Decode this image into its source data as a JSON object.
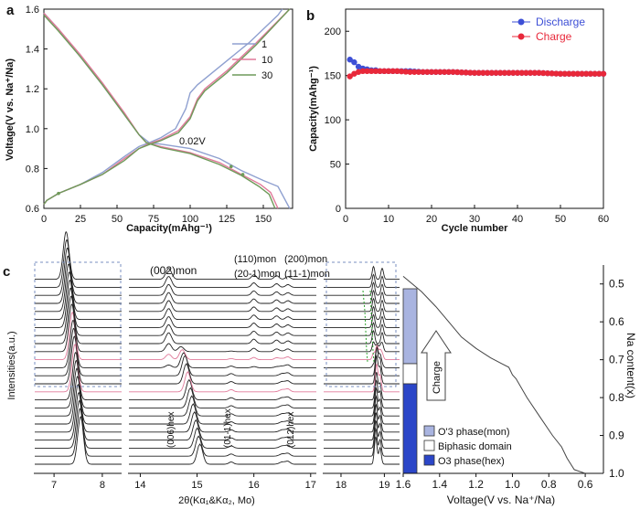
{
  "chart_data": [
    {
      "panel": "a",
      "type": "line",
      "xlabel": "Capacity(mAhg⁻¹)",
      "ylabel": "Voltage(V vs. Na⁺/Na)",
      "xlim": [
        0,
        170
      ],
      "ylim": [
        0.6,
        1.6
      ],
      "xticks": [
        "0",
        "25",
        "50",
        "75",
        "100",
        "125",
        "150"
      ],
      "yticks": [
        "0.6",
        "0.8",
        "1.0",
        "1.2",
        "1.4",
        "1.6"
      ],
      "annotation": "0.02V",
      "legend": [
        "1",
        "10",
        "30"
      ],
      "colors": [
        "#8fa0d0",
        "#e07a9a",
        "#6f9a5a"
      ],
      "series": [
        {
          "name": "1",
          "charge": [
            [
              0,
              0.62
            ],
            [
              2,
              0.64
            ],
            [
              10,
              0.675
            ],
            [
              25,
              0.72
            ],
            [
              40,
              0.78
            ],
            [
              55,
              0.86
            ],
            [
              65,
              0.91
            ],
            [
              72,
              0.93
            ],
            [
              80,
              0.955
            ],
            [
              90,
              1.0
            ],
            [
              97,
              1.1
            ],
            [
              100,
              1.18
            ],
            [
              105,
              1.22
            ],
            [
              120,
              1.31
            ],
            [
              140,
              1.43
            ],
            [
              160,
              1.57
            ],
            [
              163,
              1.6
            ]
          ],
          "discharge": [
            [
              0,
              1.58
            ],
            [
              10,
              1.5
            ],
            [
              25,
              1.36
            ],
            [
              40,
              1.22
            ],
            [
              55,
              1.07
            ],
            [
              65,
              0.97
            ],
            [
              72,
              0.93
            ],
            [
              82,
              0.92
            ],
            [
              100,
              0.9
            ],
            [
              120,
              0.85
            ],
            [
              135,
              0.79
            ],
            [
              150,
              0.74
            ],
            [
              160,
              0.71
            ],
            [
              168,
              0.6
            ]
          ]
        },
        {
          "name": "10",
          "charge": [
            [
              0,
              0.62
            ],
            [
              2,
              0.64
            ],
            [
              10,
              0.675
            ],
            [
              25,
              0.72
            ],
            [
              40,
              0.77
            ],
            [
              55,
              0.85
            ],
            [
              65,
              0.9
            ],
            [
              72,
              0.925
            ],
            [
              80,
              0.945
            ],
            [
              92,
              0.99
            ],
            [
              100,
              1.06
            ],
            [
              105,
              1.15
            ],
            [
              110,
              1.2
            ],
            [
              125,
              1.29
            ],
            [
              145,
              1.43
            ],
            [
              168,
              1.6
            ]
          ],
          "discharge": [
            [
              0,
              1.58
            ],
            [
              10,
              1.5
            ],
            [
              25,
              1.37
            ],
            [
              40,
              1.23
            ],
            [
              55,
              1.08
            ],
            [
              65,
              0.97
            ],
            [
              70,
              0.93
            ],
            [
              80,
              0.91
            ],
            [
              100,
              0.88
            ],
            [
              120,
              0.83
            ],
            [
              135,
              0.77
            ],
            [
              148,
              0.72
            ],
            [
              155,
              0.68
            ],
            [
              160,
              0.6
            ]
          ]
        },
        {
          "name": "30",
          "charge": [
            [
              0,
              0.62
            ],
            [
              2,
              0.64
            ],
            [
              10,
              0.675
            ],
            [
              25,
              0.72
            ],
            [
              40,
              0.77
            ],
            [
              55,
              0.84
            ],
            [
              65,
              0.9
            ],
            [
              72,
              0.92
            ],
            [
              80,
              0.94
            ],
            [
              92,
              0.98
            ],
            [
              100,
              1.05
            ],
            [
              105,
              1.14
            ],
            [
              110,
              1.19
            ],
            [
              125,
              1.28
            ],
            [
              145,
              1.42
            ],
            [
              168,
              1.6
            ]
          ],
          "discharge": [
            [
              0,
              1.57
            ],
            [
              10,
              1.49
            ],
            [
              25,
              1.36
            ],
            [
              40,
              1.22
            ],
            [
              55,
              1.07
            ],
            [
              65,
              0.97
            ],
            [
              70,
              0.93
            ],
            [
              80,
              0.905
            ],
            [
              100,
              0.875
            ],
            [
              120,
              0.82
            ],
            [
              135,
              0.765
            ],
            [
              147,
              0.71
            ],
            [
              154,
              0.67
            ],
            [
              158,
              0.6
            ]
          ]
        }
      ]
    },
    {
      "panel": "b",
      "type": "scatter",
      "xlabel": "Cycle number",
      "ylabel": "Capacity(mAhg⁻¹)",
      "xlim": [
        0,
        60
      ],
      "ylim": [
        0,
        225
      ],
      "xticks": [
        "0",
        "10",
        "20",
        "30",
        "40",
        "50",
        "60"
      ],
      "yticks": [
        "0",
        "50",
        "100",
        "150",
        "200"
      ],
      "legend": [
        "Discharge",
        "Charge"
      ],
      "colors": [
        "#3d4fd6",
        "#e8283a"
      ],
      "series": [
        {
          "name": "Discharge",
          "x": [
            1,
            2,
            3,
            4,
            5,
            6,
            7,
            8,
            9,
            10,
            12,
            15,
            18,
            20,
            25,
            30,
            35,
            40,
            45,
            50,
            55,
            60
          ],
          "y": [
            168,
            165,
            160,
            158,
            157,
            156,
            156,
            155,
            155,
            155,
            155,
            155,
            154,
            154,
            154,
            153,
            153,
            153,
            153,
            152,
            152,
            152
          ]
        },
        {
          "name": "Charge",
          "x": [
            1,
            2,
            3,
            4,
            5,
            6,
            7,
            8,
            9,
            10,
            12,
            15,
            18,
            20,
            25,
            30,
            35,
            40,
            45,
            50,
            55,
            60
          ],
          "y": [
            149,
            152,
            154,
            155,
            155,
            155,
            155,
            155,
            155,
            155,
            155,
            154,
            154,
            154,
            154,
            153,
            153,
            153,
            153,
            152,
            152,
            152
          ]
        }
      ]
    },
    {
      "panel": "c",
      "type": "line",
      "xlabel": "2θ(Kα₁&Kα₂, Mo)",
      "ylabel": "Intensities(a.u.)",
      "xticks_1": [
        "7",
        "8"
      ],
      "xticks_2": [
        "14",
        "15",
        "16",
        "17"
      ],
      "xticks_3": [
        "18",
        "19"
      ],
      "num_patterns": 24,
      "pink_pattern_indices": [
        9,
        13
      ],
      "peak_labels": {
        "p002mon": "(002)mon",
        "p110mon": "(110)mon",
        "p201mon": "(20-1)mon",
        "p200mon": "(200)mon",
        "p111mon": "(11-1)mon",
        "p006hex": "(006)hex",
        "p011hex": "(01-1)hex",
        "p012hex": "(012)hex"
      },
      "phase_legend": [
        "O'3 phase(mon)",
        "Biphasic domain",
        "O3 phase(hex)"
      ],
      "phase_colors": [
        "#a9b4e0",
        "#ffffff",
        "#2b46c8"
      ],
      "arrow_label": "Charge",
      "voltage_xlabel": "Voltage(V vs. Na⁺/Na)",
      "voltage_xticks": [
        "1.6",
        "1.4",
        "1.2",
        "1.0",
        "0.8",
        "0.6"
      ],
      "voltage_xlim": [
        1.6,
        0.5
      ],
      "na_ylabel": "Na content(x)",
      "na_yticks": [
        "0.5",
        "0.6",
        "0.7",
        "0.8",
        "0.9",
        "1.0"
      ],
      "na_ylim": [
        0.45,
        1.0
      ],
      "voltage_curve": [
        [
          1.6,
          0.48
        ],
        [
          1.5,
          0.52
        ],
        [
          1.42,
          0.56
        ],
        [
          1.35,
          0.6
        ],
        [
          1.28,
          0.64
        ],
        [
          1.2,
          0.67
        ],
        [
          1.12,
          0.695
        ],
        [
          1.06,
          0.71
        ],
        [
          1.02,
          0.72
        ],
        [
          1.0,
          0.74
        ],
        [
          0.98,
          0.75
        ],
        [
          0.92,
          0.8
        ],
        [
          0.85,
          0.85
        ],
        [
          0.78,
          0.9
        ],
        [
          0.73,
          0.93
        ],
        [
          0.7,
          0.96
        ],
        [
          0.66,
          0.99
        ],
        [
          0.6,
          1.0
        ]
      ]
    }
  ],
  "labels": {
    "panel_a": "a",
    "panel_b": "b",
    "panel_c": "c"
  }
}
